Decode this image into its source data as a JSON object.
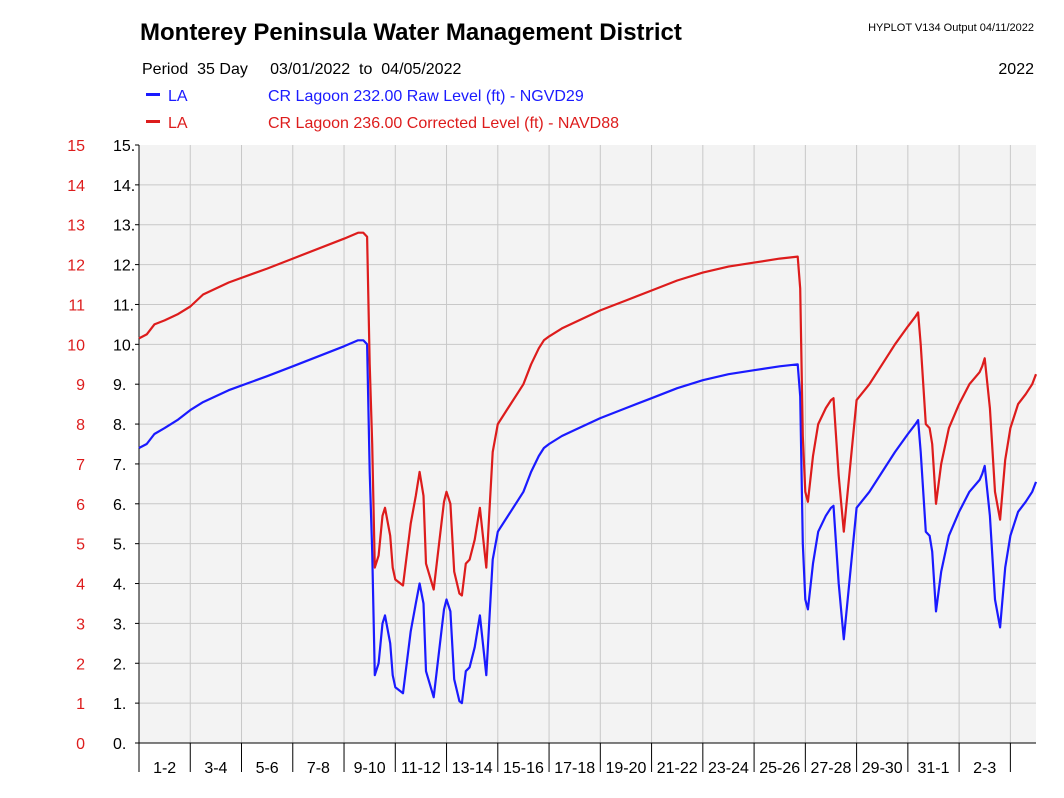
{
  "header": {
    "title": "Monterey Peninsula Water Management District",
    "version": "HYPLOT V134  Output 04/11/2022",
    "period_label": "Period",
    "period_length": "35 Day",
    "start_date": "03/01/2022",
    "to_label": "to",
    "end_date": "04/05/2022",
    "year": "2022"
  },
  "colors": {
    "raw": "#1a1aff",
    "corrected": "#dd1c1c",
    "grid": "#c8c8c8",
    "plot_bg": "#f3f3f3"
  },
  "chart_data": {
    "type": "line",
    "ylim": [
      0,
      15
    ],
    "y_ticks": [
      0,
      1,
      2,
      3,
      4,
      5,
      6,
      7,
      8,
      9,
      10,
      11,
      12,
      13,
      14,
      15
    ],
    "y_ticks_left": [
      "0",
      "1",
      "2",
      "3",
      "4",
      "5",
      "6",
      "7",
      "8",
      "9",
      "10",
      "11",
      "12",
      "13",
      "14",
      "15"
    ],
    "y_ticks_right": [
      "0.",
      "1.",
      "2.",
      "3.",
      "4.",
      "5.",
      "6.",
      "7.",
      "8.",
      "9.",
      "10.",
      "11.",
      "12.",
      "13.",
      "14.",
      "15."
    ],
    "xlim": [
      0,
      35
    ],
    "x_tick_labels": [
      "1-2",
      "3-4",
      "5-6",
      "7-8",
      "9-10",
      "11-12",
      "13-14",
      "15-16",
      "17-18",
      "19-20",
      "21-22",
      "23-24",
      "25-26",
      "27-28",
      "29-30",
      "31-1",
      "2-3"
    ],
    "grid": true,
    "series": [
      {
        "name": "CR Lagoon  232.00 Raw Level (ft) - NGVD29",
        "code": "LA",
        "color": "#1a1aff",
        "x": [
          0,
          0.3,
          0.6,
          1.0,
          1.5,
          2.0,
          2.25,
          2.5,
          3.5,
          5.0,
          6.0,
          8.0,
          8.55,
          8.75,
          8.9,
          9.0,
          9.1,
          9.2,
          9.35,
          9.5,
          9.6,
          9.8,
          9.9,
          10.0,
          10.3,
          10.6,
          10.8,
          10.95,
          11.1,
          11.2,
          11.5,
          11.8,
          11.9,
          12.0,
          12.15,
          12.3,
          12.5,
          12.6,
          12.75,
          12.9,
          13.1,
          13.3,
          13.55,
          13.8,
          14.0,
          14.5,
          14.8,
          15.0,
          15.3,
          15.6,
          15.8,
          16.0,
          16.5,
          17.0,
          18.0,
          19.0,
          20.0,
          21.0,
          22.0,
          23.0,
          24.0,
          25.0,
          25.7,
          25.8,
          25.9,
          26.0,
          26.1,
          26.3,
          26.5,
          26.8,
          27.0,
          27.1,
          27.3,
          27.5,
          28.0,
          28.5,
          29.0,
          29.5,
          30.0,
          30.3,
          30.4,
          30.5,
          30.7,
          30.85,
          30.95,
          31.1,
          31.3,
          31.6,
          32.0,
          32.4,
          32.8,
          32.9,
          33.0,
          33.2,
          33.4,
          33.6,
          33.8,
          34.0,
          34.3,
          34.6,
          34.85,
          35.0
        ],
        "y": [
          7.4,
          7.5,
          7.75,
          7.9,
          8.1,
          8.35,
          8.45,
          8.55,
          8.85,
          9.2,
          9.45,
          9.95,
          10.1,
          10.1,
          10.0,
          6.8,
          4.8,
          1.7,
          2.0,
          3.0,
          3.2,
          2.5,
          1.7,
          1.4,
          1.25,
          2.8,
          3.5,
          4.0,
          3.5,
          1.8,
          1.15,
          2.8,
          3.35,
          3.6,
          3.3,
          1.6,
          1.05,
          1.0,
          1.8,
          1.9,
          2.4,
          3.2,
          1.7,
          4.6,
          5.3,
          5.8,
          6.1,
          6.3,
          6.8,
          7.2,
          7.4,
          7.5,
          7.7,
          7.85,
          8.15,
          8.4,
          8.65,
          8.9,
          9.1,
          9.25,
          9.35,
          9.45,
          9.5,
          8.7,
          5.0,
          3.6,
          3.35,
          4.5,
          5.3,
          5.7,
          5.9,
          5.95,
          4.0,
          2.6,
          5.9,
          6.3,
          6.8,
          7.3,
          7.75,
          8.0,
          8.1,
          7.3,
          5.3,
          5.2,
          4.8,
          3.3,
          4.3,
          5.2,
          5.8,
          6.3,
          6.6,
          6.75,
          6.95,
          5.7,
          3.6,
          2.9,
          4.4,
          5.2,
          5.8,
          6.05,
          6.3,
          6.55
        ]
      },
      {
        "name": "CR Lagoon  236.00 Corrected Level (ft) - NAVD88",
        "code": "LA",
        "color": "#dd1c1c",
        "x": [
          0,
          0.3,
          0.6,
          1.0,
          1.5,
          2.0,
          2.25,
          2.5,
          3.5,
          5.0,
          6.0,
          8.0,
          8.55,
          8.75,
          8.9,
          9.0,
          9.1,
          9.2,
          9.35,
          9.5,
          9.6,
          9.8,
          9.9,
          10.0,
          10.3,
          10.6,
          10.8,
          10.95,
          11.1,
          11.2,
          11.5,
          11.8,
          11.9,
          12.0,
          12.15,
          12.3,
          12.5,
          12.6,
          12.75,
          12.9,
          13.1,
          13.3,
          13.55,
          13.8,
          14.0,
          14.5,
          14.8,
          15.0,
          15.3,
          15.6,
          15.8,
          16.0,
          16.5,
          17.0,
          18.0,
          19.0,
          20.0,
          21.0,
          22.0,
          23.0,
          24.0,
          25.0,
          25.7,
          25.8,
          25.9,
          26.0,
          26.1,
          26.3,
          26.5,
          26.8,
          27.0,
          27.1,
          27.3,
          27.5,
          28.0,
          28.5,
          29.0,
          29.5,
          30.0,
          30.3,
          30.4,
          30.5,
          30.7,
          30.85,
          30.95,
          31.1,
          31.3,
          31.6,
          32.0,
          32.4,
          32.8,
          32.9,
          33.0,
          33.2,
          33.4,
          33.6,
          33.8,
          34.0,
          34.3,
          34.6,
          34.85,
          35.0
        ],
        "y": [
          10.15,
          10.25,
          10.5,
          10.6,
          10.75,
          10.95,
          11.1,
          11.25,
          11.55,
          11.9,
          12.15,
          12.65,
          12.8,
          12.8,
          12.7,
          9.5,
          7.5,
          4.4,
          4.7,
          5.7,
          5.9,
          5.2,
          4.4,
          4.1,
          3.95,
          5.5,
          6.2,
          6.8,
          6.2,
          4.5,
          3.85,
          5.5,
          6.05,
          6.3,
          6.0,
          4.3,
          3.75,
          3.7,
          4.5,
          4.6,
          5.1,
          5.9,
          4.4,
          7.3,
          8.0,
          8.5,
          8.8,
          9.0,
          9.5,
          9.9,
          10.1,
          10.2,
          10.4,
          10.55,
          10.85,
          11.1,
          11.35,
          11.6,
          11.8,
          11.95,
          12.05,
          12.15,
          12.2,
          11.4,
          7.7,
          6.3,
          6.05,
          7.2,
          8.0,
          8.4,
          8.6,
          8.65,
          6.7,
          5.3,
          8.6,
          9.0,
          9.5,
          10.0,
          10.45,
          10.7,
          10.8,
          10.0,
          8.0,
          7.9,
          7.5,
          6.0,
          7.0,
          7.9,
          8.5,
          9.0,
          9.3,
          9.45,
          9.65,
          8.4,
          6.3,
          5.6,
          7.1,
          7.9,
          8.5,
          8.75,
          9.0,
          9.25
        ]
      }
    ]
  }
}
